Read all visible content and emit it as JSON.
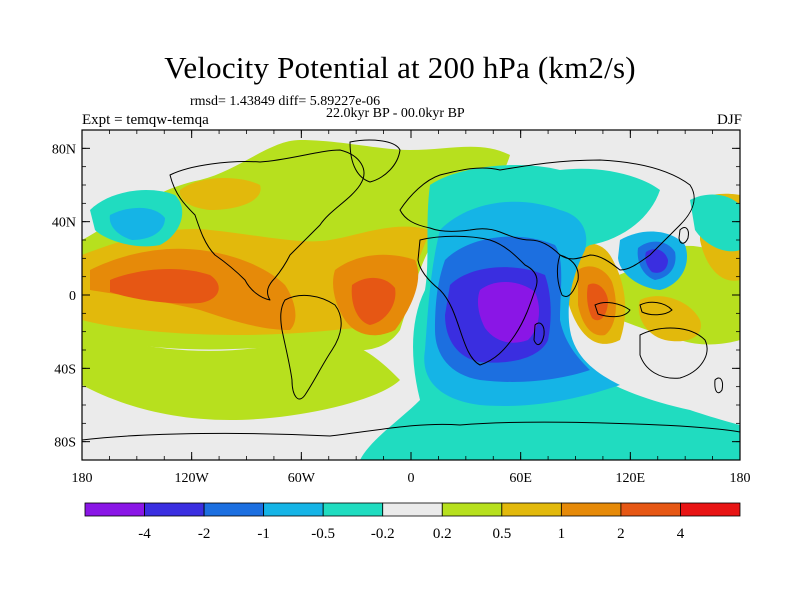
{
  "title": "Velocity Potential at 200 hPa (km2/s)",
  "stats_line": "rmsd= 1.43849 diff= 5.89227e-06",
  "period_line": "22.0kyr BP - 00.0kyr BP",
  "expt_line": "Expt = temqw-temqa",
  "season": "DJF",
  "map": {
    "lon_ticks": [
      "180",
      "120W",
      "60W",
      "0",
      "60E",
      "120E",
      "180"
    ],
    "lat_ticks": [
      "80N",
      "40N",
      "0",
      "40S",
      "80S"
    ],
    "lon_values": [
      -180,
      -120,
      -60,
      0,
      60,
      120,
      180
    ],
    "lat_values": [
      80,
      40,
      0,
      -40,
      -80
    ]
  },
  "colorbar": {
    "labels": [
      "-4",
      "-2",
      "-1",
      "-0.5",
      "-0.2",
      "0.2",
      "0.5",
      "1",
      "2",
      "4"
    ],
    "colors": [
      "#8a16e6",
      "#3a2ee0",
      "#1c6fe0",
      "#15b4e6",
      "#20dcc0",
      "#ebebeb",
      "#b7e01e",
      "#e2b90c",
      "#e68a09",
      "#e65714",
      "#e81414"
    ]
  },
  "palette": {
    "purple": "#8a16e6",
    "blue_dark": "#3a2ee0",
    "blue": "#1c6fe0",
    "cyan": "#15b4e6",
    "teal": "#20dcc0",
    "neutral": "#ebebeb",
    "green": "#b7e01e",
    "yellow": "#e2b90c",
    "orange": "#e68a09",
    "red_orange": "#e65714",
    "red": "#e81414"
  }
}
